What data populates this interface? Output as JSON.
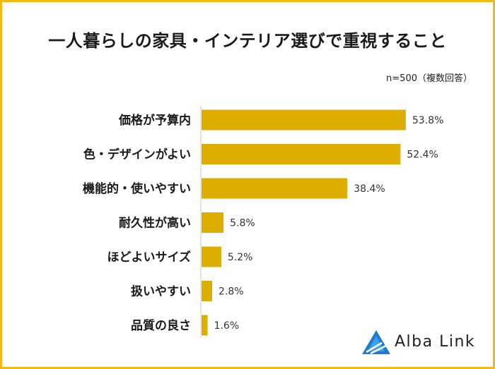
{
  "chart_data": {
    "type": "bar",
    "orientation": "horizontal",
    "title": "一人暮らしの家具・インテリア選びで重視すること",
    "note": "n=500（複数回答）",
    "categories": [
      "価格が予算内",
      "色・デザインがよい",
      "機能的・使いやすい",
      "耐久性が高い",
      "ほどよいサイズ",
      "扱いやすい",
      "品質の良さ"
    ],
    "values": [
      53.8,
      52.4,
      38.4,
      5.8,
      5.2,
      2.8,
      1.6
    ],
    "value_labels": [
      "53.8%",
      "52.4%",
      "38.4%",
      "5.8%",
      "5.2%",
      "2.8%",
      "1.6%"
    ],
    "unit": "%",
    "xlim": [
      0,
      100
    ],
    "grid": false,
    "legend": "none",
    "bar_color": "#ddae00"
  },
  "brand": {
    "name": "Alba Link",
    "logo_icon": "triangle-logo-icon"
  },
  "frame_color": "#f2b915"
}
